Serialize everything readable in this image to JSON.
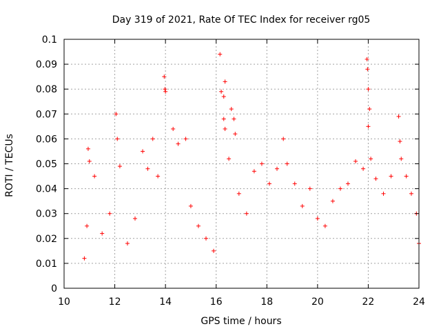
{
  "chart_data": {
    "type": "scatter",
    "title": "Day 319 of 2021, Rate Of TEC Index for receiver rg05",
    "xlabel": "GPS time / hours",
    "ylabel": "ROTI / TECUs",
    "xlim": [
      10,
      24
    ],
    "ylim": [
      0,
      0.1
    ],
    "x_ticks": [
      "10",
      "12",
      "14",
      "16",
      "18",
      "20",
      "22",
      "24"
    ],
    "y_ticks": [
      "0",
      "0.01",
      "0.02",
      "0.03",
      "0.04",
      "0.05",
      "0.06",
      "0.07",
      "0.08",
      "0.09",
      "0.1"
    ],
    "grid": true,
    "marker": "+",
    "series": [
      {
        "color": "#ff0000",
        "points": [
          [
            10.8,
            0.012
          ],
          [
            10.9,
            0.025
          ],
          [
            10.95,
            0.056
          ],
          [
            11.0,
            0.051
          ],
          [
            11.2,
            0.045
          ],
          [
            11.5,
            0.022
          ],
          [
            11.8,
            0.03
          ],
          [
            12.05,
            0.07
          ],
          [
            12.1,
            0.06
          ],
          [
            12.2,
            0.049
          ],
          [
            12.5,
            0.018
          ],
          [
            12.8,
            0.028
          ],
          [
            13.1,
            0.055
          ],
          [
            13.3,
            0.048
          ],
          [
            13.5,
            0.06
          ],
          [
            13.7,
            0.045
          ],
          [
            13.95,
            0.085
          ],
          [
            13.98,
            0.08
          ],
          [
            14.0,
            0.079
          ],
          [
            14.3,
            0.064
          ],
          [
            14.5,
            0.058
          ],
          [
            14.8,
            0.06
          ],
          [
            15.0,
            0.033
          ],
          [
            15.3,
            0.025
          ],
          [
            15.6,
            0.02
          ],
          [
            15.9,
            0.015
          ],
          [
            16.15,
            0.094
          ],
          [
            16.2,
            0.079
          ],
          [
            16.3,
            0.077
          ],
          [
            16.35,
            0.083
          ],
          [
            16.3,
            0.068
          ],
          [
            16.35,
            0.064
          ],
          [
            16.6,
            0.072
          ],
          [
            16.7,
            0.068
          ],
          [
            16.75,
            0.062
          ],
          [
            16.5,
            0.052
          ],
          [
            16.9,
            0.038
          ],
          [
            17.2,
            0.03
          ],
          [
            17.5,
            0.047
          ],
          [
            17.8,
            0.05
          ],
          [
            18.1,
            0.042
          ],
          [
            18.4,
            0.048
          ],
          [
            18.65,
            0.06
          ],
          [
            18.8,
            0.05
          ],
          [
            19.1,
            0.042
          ],
          [
            19.4,
            0.033
          ],
          [
            19.7,
            0.04
          ],
          [
            20.0,
            0.028
          ],
          [
            20.3,
            0.025
          ],
          [
            20.6,
            0.035
          ],
          [
            20.9,
            0.04
          ],
          [
            21.2,
            0.042
          ],
          [
            21.5,
            0.051
          ],
          [
            21.8,
            0.048
          ],
          [
            21.95,
            0.092
          ],
          [
            21.97,
            0.088
          ],
          [
            22.0,
            0.08
          ],
          [
            22.05,
            0.072
          ],
          [
            22.0,
            0.065
          ],
          [
            22.1,
            0.052
          ],
          [
            22.3,
            0.044
          ],
          [
            22.6,
            0.038
          ],
          [
            22.9,
            0.045
          ],
          [
            23.2,
            0.069
          ],
          [
            23.25,
            0.059
          ],
          [
            23.3,
            0.052
          ],
          [
            23.5,
            0.045
          ],
          [
            23.7,
            0.038
          ],
          [
            23.9,
            0.03
          ],
          [
            24.0,
            0.018
          ]
        ]
      }
    ]
  }
}
